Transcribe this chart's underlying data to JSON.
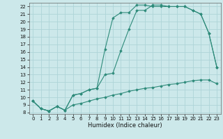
{
  "xlabel": "Humidex (Indice chaleur)",
  "bg_color": "#cce8ea",
  "grid_color": "#aed4d8",
  "line_color": "#2e8b7a",
  "xlim": [
    -0.5,
    23.5
  ],
  "ylim": [
    7.8,
    22.5
  ],
  "xticks": [
    0,
    1,
    2,
    3,
    4,
    5,
    6,
    7,
    8,
    9,
    10,
    11,
    12,
    13,
    14,
    15,
    16,
    17,
    18,
    19,
    20,
    21,
    22,
    23
  ],
  "yticks": [
    8,
    9,
    10,
    11,
    12,
    13,
    14,
    15,
    16,
    17,
    18,
    19,
    20,
    21,
    22
  ],
  "line1_x": [
    0,
    1,
    2,
    3,
    4,
    5,
    6,
    7,
    8,
    9,
    10,
    11,
    12,
    13,
    14,
    15,
    16,
    17,
    18,
    19,
    20,
    21,
    22,
    23
  ],
  "line1_y": [
    9.5,
    8.5,
    8.2,
    8.8,
    8.3,
    10.3,
    10.5,
    11.0,
    11.2,
    13.0,
    13.2,
    16.2,
    19.0,
    21.5,
    21.5,
    22.2,
    22.2,
    22.0,
    22.0,
    22.0,
    21.5,
    21.0,
    18.5,
    14.0
  ],
  "line2_x": [
    0,
    1,
    2,
    3,
    4,
    5,
    6,
    7,
    8,
    9,
    10,
    11,
    12,
    13,
    14,
    15,
    16,
    17,
    18,
    19,
    20,
    21,
    22,
    23
  ],
  "line2_y": [
    9.5,
    8.5,
    8.2,
    8.8,
    8.3,
    10.3,
    10.5,
    11.0,
    11.2,
    16.3,
    20.5,
    21.2,
    21.2,
    22.2,
    22.2,
    22.0,
    22.0,
    22.0,
    22.0,
    22.0,
    21.5,
    21.0,
    18.5,
    14.0
  ],
  "line3_x": [
    0,
    1,
    2,
    3,
    4,
    5,
    6,
    7,
    8,
    9,
    10,
    11,
    12,
    13,
    14,
    15,
    16,
    17,
    18,
    19,
    20,
    21,
    22,
    23
  ],
  "line3_y": [
    9.5,
    8.5,
    8.2,
    8.8,
    8.3,
    9.0,
    9.2,
    9.5,
    9.8,
    10.0,
    10.3,
    10.5,
    10.8,
    11.0,
    11.2,
    11.3,
    11.5,
    11.7,
    11.8,
    12.0,
    12.2,
    12.3,
    12.3,
    11.8
  ],
  "xlabel_fontsize": 6,
  "tick_fontsize": 5
}
